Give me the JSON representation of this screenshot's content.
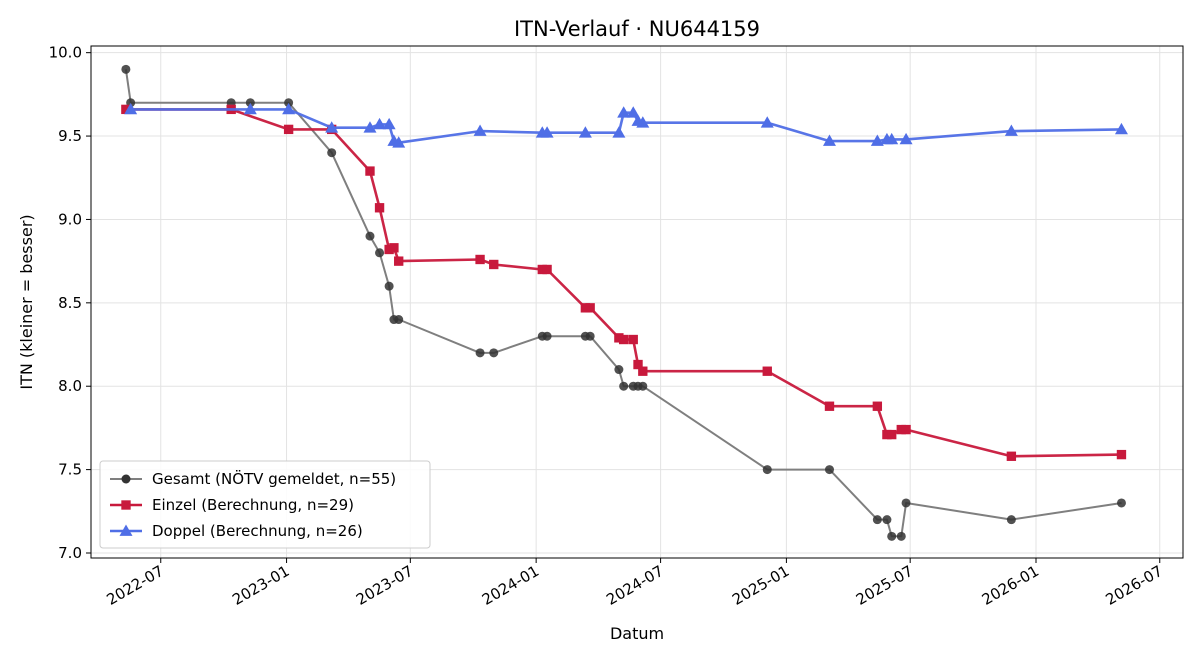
{
  "chart_data": {
    "type": "line",
    "title": "ITN-Verlauf · NU644159",
    "xlabel": "Datum",
    "ylabel": "ITN  (kleiner = besser)",
    "x_axis_type": "date",
    "xlim": [
      "2022-03-21",
      "2026-08-04"
    ],
    "ylim": [
      6.97,
      10.04
    ],
    "x_ticks": [
      "2022-07",
      "2023-01",
      "2023-07",
      "2024-01",
      "2024-07",
      "2025-01",
      "2025-07",
      "2026-01",
      "2026-07"
    ],
    "y_ticks": [
      "7.0",
      "7.5",
      "8.0",
      "8.5",
      "9.0",
      "9.5",
      "10.0"
    ],
    "grid": true,
    "legend_position": "lower-left",
    "series": [
      {
        "name": "Gesamt (NÖTV gemeldet, n=55)",
        "color": "#333333",
        "line_color": "#7f7f7f",
        "marker": "circle",
        "points": [
          [
            "2022-05-11",
            9.9
          ],
          [
            "2022-05-18",
            9.7
          ],
          [
            "2022-10-12",
            9.7
          ],
          [
            "2022-11-09",
            9.7
          ],
          [
            "2023-01-04",
            9.7
          ],
          [
            "2023-03-08",
            9.4
          ],
          [
            "2023-05-03",
            8.9
          ],
          [
            "2023-05-17",
            8.8
          ],
          [
            "2023-05-31",
            8.6
          ],
          [
            "2023-06-07",
            8.4
          ],
          [
            "2023-06-14",
            8.4
          ],
          [
            "2023-10-11",
            8.2
          ],
          [
            "2023-10-31",
            8.2
          ],
          [
            "2024-01-10",
            8.3
          ],
          [
            "2024-01-17",
            8.3
          ],
          [
            "2024-03-13",
            8.3
          ],
          [
            "2024-03-20",
            8.3
          ],
          [
            "2024-05-01",
            8.1
          ],
          [
            "2024-05-08",
            8.0
          ],
          [
            "2024-05-22",
            8.0
          ],
          [
            "2024-05-29",
            8.0
          ],
          [
            "2024-06-05",
            8.0
          ],
          [
            "2024-12-04",
            7.5
          ],
          [
            "2025-03-05",
            7.5
          ],
          [
            "2025-05-14",
            7.2
          ],
          [
            "2025-05-28",
            7.2
          ],
          [
            "2025-06-04",
            7.1
          ],
          [
            "2025-06-18",
            7.1
          ],
          [
            "2025-06-25",
            7.3
          ],
          [
            "2025-11-26",
            7.2
          ],
          [
            "2026-05-06",
            7.3
          ]
        ]
      },
      {
        "name": "Einzel (Berechnung, n=29)",
        "color": "#c8193c",
        "line_color": "#c8193c",
        "marker": "square",
        "points": [
          [
            "2022-05-11",
            9.66
          ],
          [
            "2022-10-12",
            9.66
          ],
          [
            "2023-01-04",
            9.54
          ],
          [
            "2023-03-08",
            9.54
          ],
          [
            "2023-05-03",
            9.29
          ],
          [
            "2023-05-17",
            9.07
          ],
          [
            "2023-05-31",
            8.82
          ],
          [
            "2023-06-07",
            8.83
          ],
          [
            "2023-06-14",
            8.75
          ],
          [
            "2023-10-11",
            8.76
          ],
          [
            "2023-10-31",
            8.73
          ],
          [
            "2024-01-10",
            8.7
          ],
          [
            "2024-01-17",
            8.7
          ],
          [
            "2024-03-13",
            8.47
          ],
          [
            "2024-03-20",
            8.47
          ],
          [
            "2024-05-01",
            8.29
          ],
          [
            "2024-05-08",
            8.28
          ],
          [
            "2024-05-22",
            8.28
          ],
          [
            "2024-05-29",
            8.13
          ],
          [
            "2024-06-05",
            8.09
          ],
          [
            "2024-12-04",
            8.09
          ],
          [
            "2025-03-05",
            7.88
          ],
          [
            "2025-05-14",
            7.88
          ],
          [
            "2025-05-28",
            7.71
          ],
          [
            "2025-06-04",
            7.71
          ],
          [
            "2025-06-18",
            7.74
          ],
          [
            "2025-06-25",
            7.74
          ],
          [
            "2025-11-26",
            7.58
          ],
          [
            "2026-05-06",
            7.59
          ]
        ]
      },
      {
        "name": "Doppel (Berechnung, n=26)",
        "color": "#4f6ee6",
        "line_color": "#4f6ee6",
        "marker": "triangle",
        "points": [
          [
            "2022-05-18",
            9.66
          ],
          [
            "2022-11-09",
            9.66
          ],
          [
            "2023-01-04",
            9.66
          ],
          [
            "2023-03-08",
            9.55
          ],
          [
            "2023-05-03",
            9.55
          ],
          [
            "2023-05-17",
            9.57
          ],
          [
            "2023-05-31",
            9.57
          ],
          [
            "2023-06-07",
            9.47
          ],
          [
            "2023-06-14",
            9.46
          ],
          [
            "2023-10-11",
            9.53
          ],
          [
            "2024-01-10",
            9.52
          ],
          [
            "2024-01-17",
            9.52
          ],
          [
            "2024-03-13",
            9.52
          ],
          [
            "2024-05-01",
            9.52
          ],
          [
            "2024-05-08",
            9.64
          ],
          [
            "2024-05-22",
            9.64
          ],
          [
            "2024-05-29",
            9.59
          ],
          [
            "2024-06-05",
            9.58
          ],
          [
            "2024-12-04",
            9.58
          ],
          [
            "2025-03-05",
            9.47
          ],
          [
            "2025-05-14",
            9.47
          ],
          [
            "2025-05-28",
            9.48
          ],
          [
            "2025-06-04",
            9.48
          ],
          [
            "2025-06-25",
            9.48
          ],
          [
            "2025-11-26",
            9.53
          ],
          [
            "2026-05-06",
            9.54
          ]
        ]
      }
    ]
  }
}
